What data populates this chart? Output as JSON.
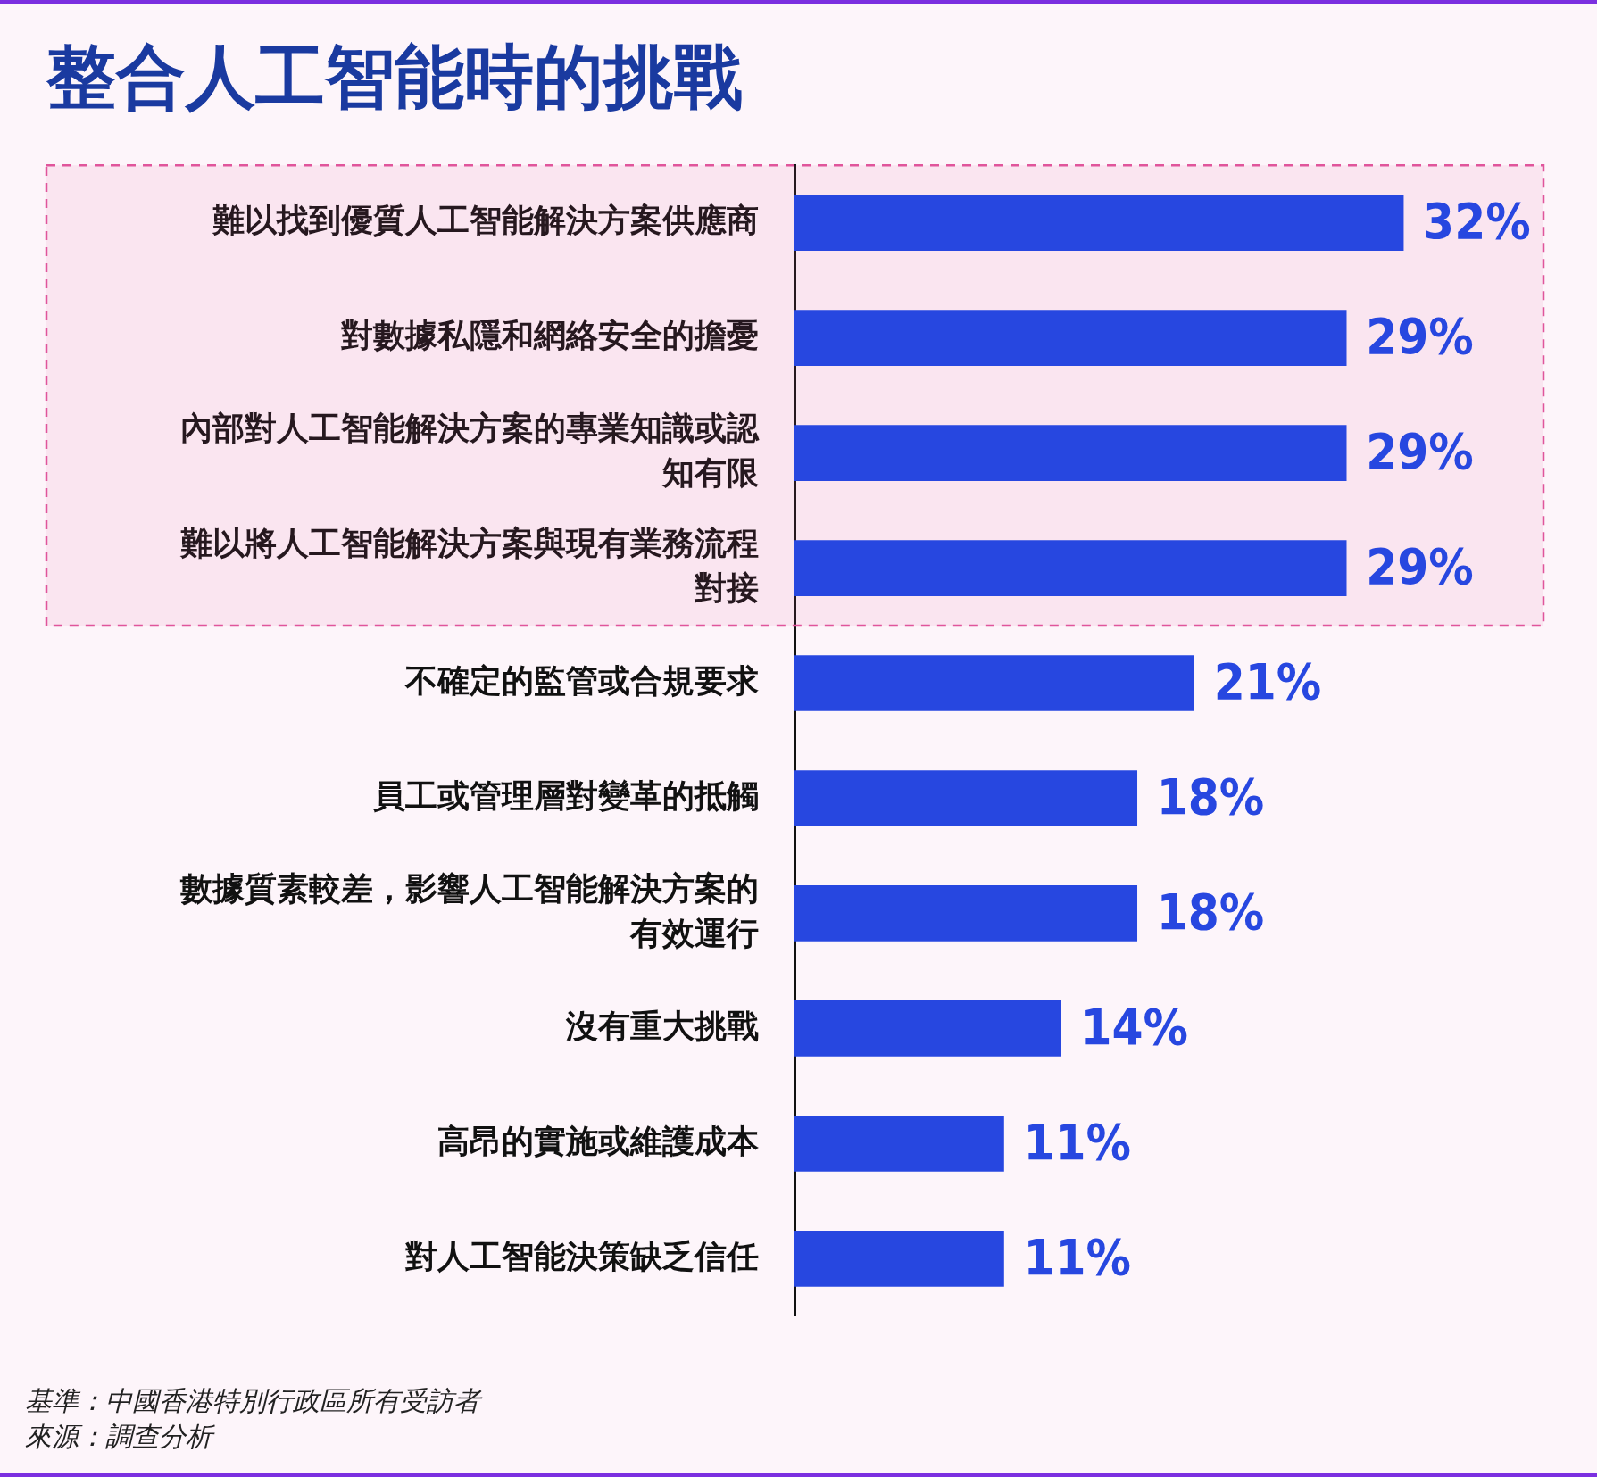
{
  "chart_data": {
    "type": "bar",
    "orientation": "horizontal",
    "title": "整合人工智能時的挑戰",
    "categories": [
      "難以找到優質人工智能解決方案供應商",
      "對數據私隱和網絡安全的擔憂",
      "內部對人工智能解決方案的專業知識或認知有限",
      "難以將人工智能解決方案與現有業務流程對接",
      "不確定的監管或合規要求",
      "員工或管理層對變革的抵觸",
      "數據質素較差，影響人工智能解決方案的有效運行",
      "沒有重大挑戰",
      "高昂的實施或維護成本",
      "對人工智能決策缺乏信任"
    ],
    "values": [
      32,
      29,
      29,
      29,
      21,
      18,
      18,
      14,
      11,
      11
    ],
    "value_labels": [
      "32%",
      "29%",
      "29%",
      "29%",
      "21%",
      "18%",
      "18%",
      "14%",
      "11%",
      "11%"
    ],
    "color": "#2747e0",
    "bands": [
      {
        "axis": "y",
        "from": "難以找到優質人工智能解決方案供應商",
        "to": "難以將人工智能解決方案與現有業務流程對接",
        "color": "#e0559b"
      }
    ],
    "tick_labels": "y",
    "grid": false,
    "legend": false,
    "annotations": [
      "基準：中國香港特別行政區所有受訪者",
      "來源：調查分析"
    ]
  }
}
